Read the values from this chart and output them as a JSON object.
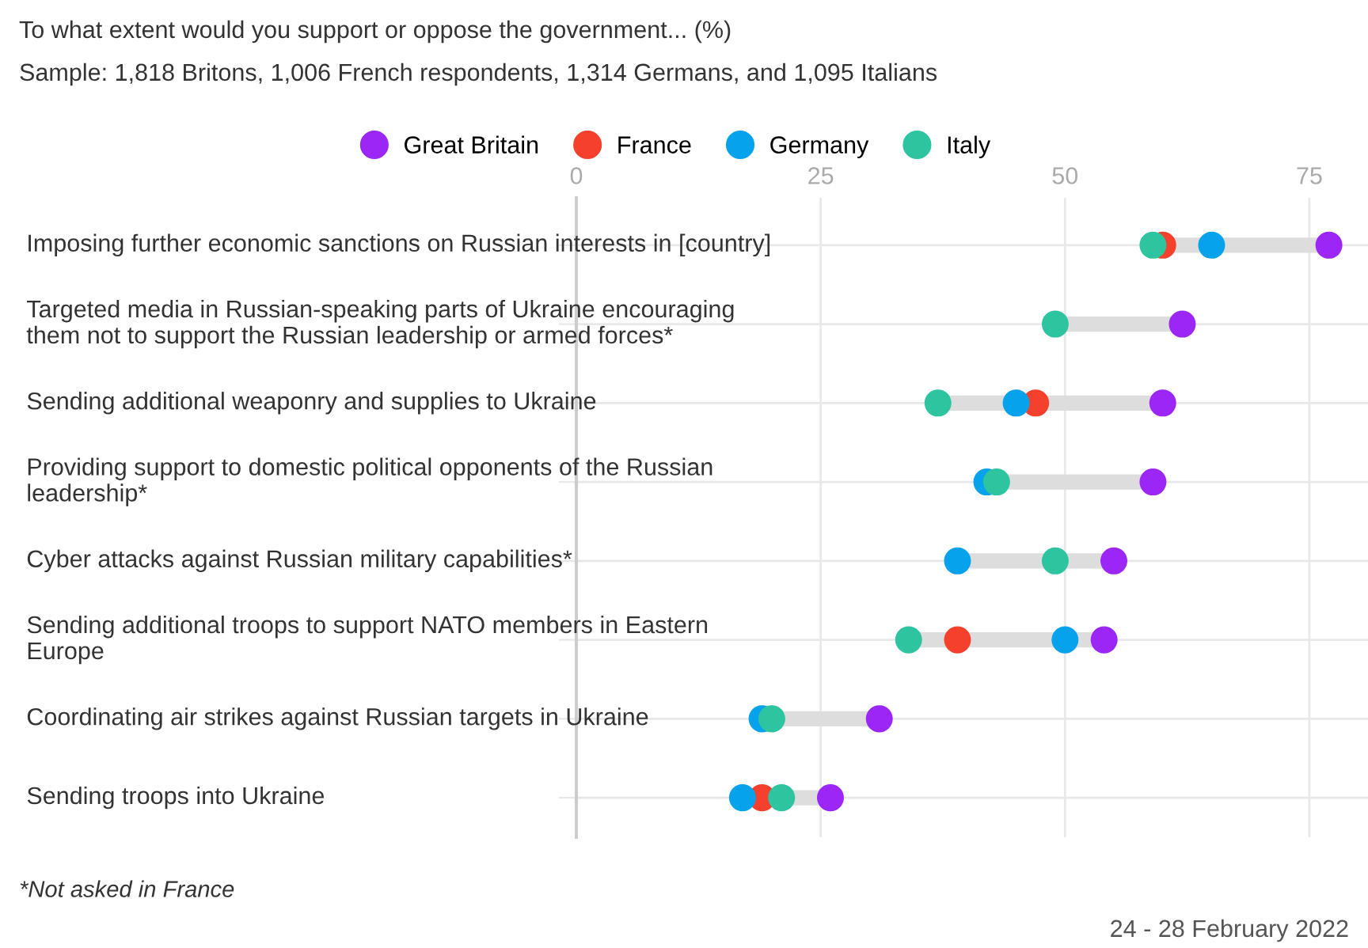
{
  "chart_data": {
    "type": "scatter",
    "orientation": "horizontal",
    "title": "To what extent would you support or oppose the government... (%)",
    "subtitle": "Sample: 1,818 Britons, 1,006 French respondents, 1,314 Germans, and 1,095 Italians",
    "categories": [
      "Imposing further economic sanctions on Russian interests in [country]",
      "Targeted media in Russian-speaking parts of Ukraine encouraging them not to support the Russian leadership or armed forces*",
      "Sending additional weaponry and supplies to Ukraine",
      "Providing support to domestic political opponents of the Russian leadership*",
      "Cyber attacks against Russian military capabilities*",
      "Sending additional troops to support NATO members in Eastern Europe",
      "Coordinating air strikes against Russian targets in Ukraine",
      "Sending troops into Ukraine"
    ],
    "series": [
      {
        "name": "Great Britain",
        "color": "#9b26f5",
        "values": [
          77,
          62,
          60,
          59,
          55,
          54,
          31,
          26
        ]
      },
      {
        "name": "France",
        "color": "#f5402c",
        "values": [
          60,
          null,
          47,
          null,
          null,
          39,
          null,
          19
        ]
      },
      {
        "name": "Germany",
        "color": "#06a2ec",
        "values": [
          65,
          null,
          45,
          42,
          39,
          50,
          19,
          17
        ]
      },
      {
        "name": "Italy",
        "color": "#2ec4a0",
        "values": [
          59,
          49,
          37,
          43,
          49,
          34,
          20,
          21
        ]
      }
    ],
    "xlim": [
      0,
      81
    ],
    "xticks": [
      0,
      25,
      50,
      75
    ],
    "grid": true,
    "legend": "top",
    "marker": "circle",
    "annotations": [
      "*Not asked in France",
      "24 - 28 February 2022"
    ]
  }
}
